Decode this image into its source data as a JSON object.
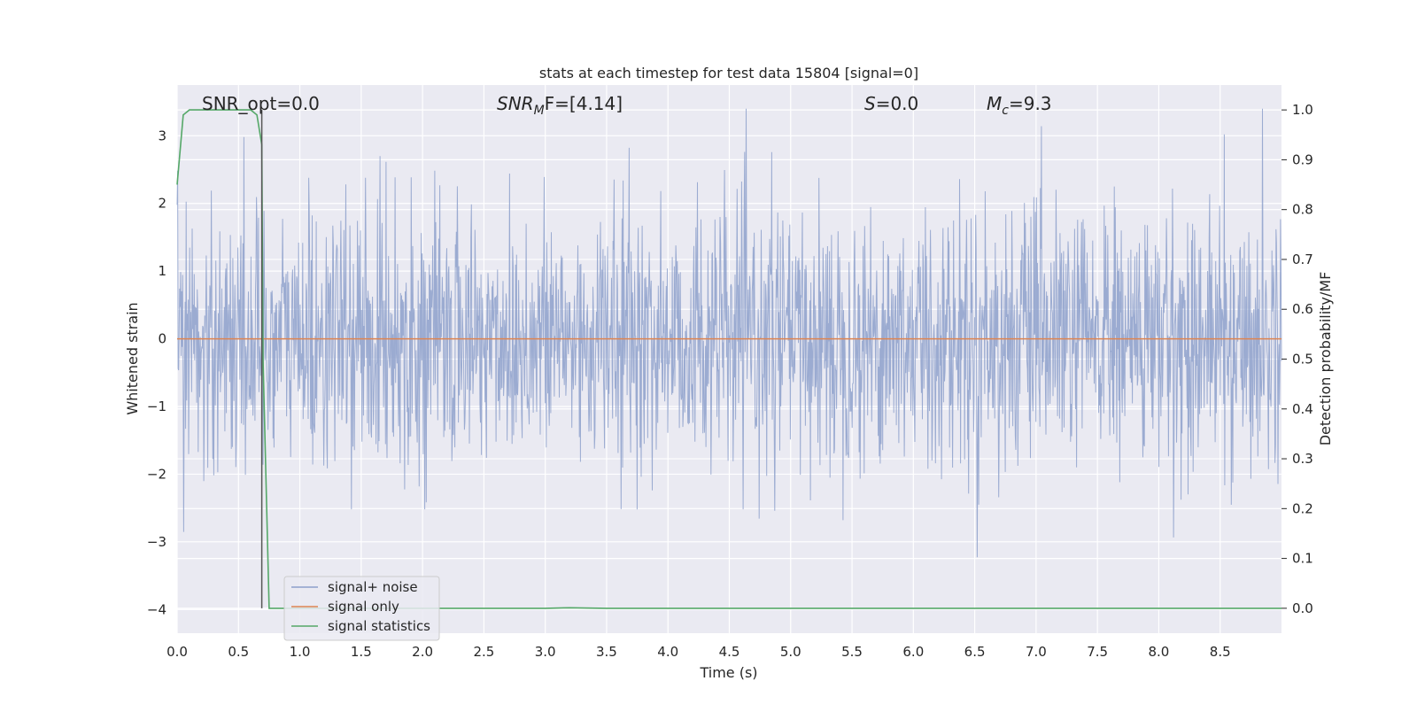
{
  "chart_data": {
    "type": "line",
    "title": "stats at each timestep for test data 15804 [signal=0]",
    "xlabel": "Time (s)",
    "ylabel_left": "Whitened strain",
    "ylabel_right": "Detection probability/MF",
    "xlim": [
      0.0,
      9.0
    ],
    "ylim_left": [
      -4.35,
      3.75
    ],
    "ylim_right": [
      -0.05,
      1.05
    ],
    "x_ticks": [
      0.0,
      0.5,
      1.0,
      1.5,
      2.0,
      2.5,
      3.0,
      3.5,
      4.0,
      4.5,
      5.0,
      5.5,
      6.0,
      6.5,
      7.0,
      7.5,
      8.0,
      8.5
    ],
    "x_tick_labels": [
      "0.0",
      "0.5",
      "1.0",
      "1.5",
      "2.0",
      "2.5",
      "3.0",
      "3.5",
      "4.0",
      "4.5",
      "5.0",
      "5.5",
      "6.0",
      "6.5",
      "7.0",
      "7.5",
      "8.0",
      "8.5"
    ],
    "y_ticks_left": [
      -4,
      -3,
      -2,
      -1,
      0,
      1,
      2,
      3
    ],
    "y_tick_labels_left": [
      "−4",
      "−3",
      "−2",
      "−1",
      "0",
      "1",
      "2",
      "3"
    ],
    "y_ticks_right": [
      0.0,
      0.1,
      0.2,
      0.3,
      0.4,
      0.5,
      0.6,
      0.7,
      0.8,
      0.9,
      1.0
    ],
    "y_tick_labels_right": [
      "0.0",
      "0.1",
      "0.2",
      "0.3",
      "0.4",
      "0.5",
      "0.6",
      "0.7",
      "0.8",
      "0.9",
      "1.0"
    ],
    "grid": true,
    "legend_position": "lower-left",
    "series": [
      {
        "name": "signal+ noise",
        "color": "#8da0cb",
        "axis": "left",
        "description_stats": {
          "approx_range": [
            -4.0,
            3.4
          ],
          "dense_band": [
            -1.2,
            1.2
          ]
        }
      },
      {
        "name": "signal only",
        "color": "#dd8452",
        "axis": "left",
        "x": [
          0.0,
          9.0
        ],
        "y": [
          0.0,
          0.0
        ]
      },
      {
        "name": "signal statistics",
        "color": "#55a868",
        "axis": "right",
        "x": [
          0.0,
          0.05,
          0.1,
          0.2,
          0.3,
          0.4,
          0.5,
          0.6,
          0.65,
          0.69,
          0.7,
          0.75,
          1.0,
          2.0,
          3.0,
          3.2,
          3.5,
          4.0,
          5.0,
          6.0,
          7.0,
          8.0,
          9.0
        ],
        "y": [
          0.85,
          0.99,
          1.0,
          1.0,
          1.0,
          1.0,
          1.0,
          1.0,
          0.99,
          0.93,
          0.5,
          0.0,
          0.0,
          0.0,
          0.0,
          0.001,
          0.0,
          0.0,
          0.0,
          0.0,
          0.0,
          0.0,
          0.0
        ]
      }
    ],
    "vline": {
      "x": 0.69,
      "color": "#555555"
    },
    "annotations": [
      {
        "text": "SNR_opt=0.0",
        "x": 0.2
      },
      {
        "text": "SNR_MF=[4.14]",
        "x": 2.6
      },
      {
        "text": "S=0.0",
        "x": 5.6
      },
      {
        "text": "M_c=9.3",
        "x": 6.6
      }
    ],
    "annotation_parts": {
      "snr_opt": "SNR_opt=0.0",
      "snr_mf_main": "SNR",
      "snr_mf_sub": "M",
      "snr_mf_rest": "F=[4.14]",
      "s_sym": "S",
      "s_rest": "=0.0",
      "mc_sym": "M",
      "mc_sub": "c",
      "mc_rest": "=9.3"
    },
    "colors": {
      "plot_bg": "#eaeaf2",
      "grid": "#ffffff",
      "noise": "#8da0cb",
      "signal": "#dd8452",
      "stat": "#55a868"
    }
  }
}
